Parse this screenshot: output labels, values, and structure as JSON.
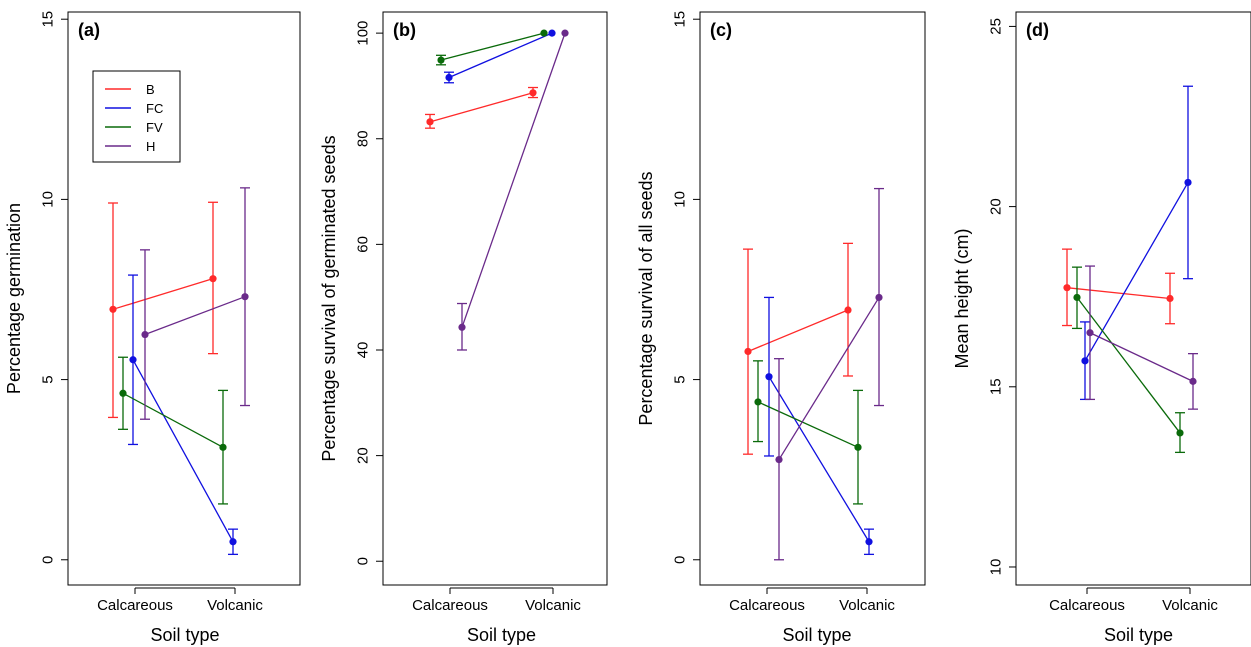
{
  "colors": {
    "B": "#ff2a2a",
    "FC": "#1010e0",
    "FV": "#0a6a0a",
    "H": "#6a2a8a"
  },
  "legend": [
    {
      "name": "B",
      "color_key": "B"
    },
    {
      "name": "FC",
      "color_key": "FC"
    },
    {
      "name": "FV",
      "color_key": "FV"
    },
    {
      "name": "H",
      "color_key": "H"
    }
  ],
  "chart_data": [
    {
      "type": "line",
      "panel": "(a)",
      "xlabel": "Soil type",
      "ylabel": "Percentage germination",
      "categories": [
        "Calcareous",
        "Volcanic"
      ],
      "ylim": [
        -0.7,
        15.2
      ],
      "yticks": [
        0,
        5,
        10,
        15
      ],
      "legend_position": "top-left",
      "series": [
        {
          "name": "B",
          "values": [
            6.95,
            7.8
          ],
          "lower": [
            3.95,
            5.72
          ],
          "upper": [
            9.9,
            9.92
          ]
        },
        {
          "name": "FC",
          "values": [
            5.55,
            0.5
          ],
          "lower": [
            3.2,
            0.15
          ],
          "upper": [
            7.9,
            0.85
          ]
        },
        {
          "name": "FV",
          "values": [
            4.62,
            3.12
          ],
          "lower": [
            3.62,
            1.55
          ],
          "upper": [
            5.62,
            4.7
          ]
        },
        {
          "name": "H",
          "values": [
            6.25,
            7.3
          ],
          "lower": [
            3.9,
            4.28
          ],
          "upper": [
            8.6,
            10.32
          ]
        }
      ]
    },
    {
      "type": "line",
      "panel": "(b)",
      "xlabel": "Soil type",
      "ylabel": "Percentage survival of germinated seeds",
      "categories": [
        "Calcareous",
        "Volcanic"
      ],
      "ylim": [
        -4.5,
        104
      ],
      "yticks": [
        0,
        20,
        40,
        60,
        80,
        100
      ],
      "series": [
        {
          "name": "B",
          "values": [
            83.2,
            88.7
          ],
          "lower": [
            82,
            87.8
          ],
          "upper": [
            84.6,
            89.7
          ]
        },
        {
          "name": "FC",
          "values": [
            91.6,
            100
          ],
          "lower": [
            90.6,
            100
          ],
          "upper": [
            92.6,
            100
          ]
        },
        {
          "name": "FV",
          "values": [
            94.9,
            100
          ],
          "lower": [
            94,
            100
          ],
          "upper": [
            95.8,
            100
          ]
        },
        {
          "name": "H",
          "values": [
            44.3,
            100
          ],
          "lower": [
            40,
            100
          ],
          "upper": [
            48.8,
            100
          ]
        }
      ]
    },
    {
      "type": "line",
      "panel": "(c)",
      "xlabel": "Soil type",
      "ylabel": "Percentage survival of all seeds",
      "categories": [
        "Calcareous",
        "Volcanic"
      ],
      "ylim": [
        -0.7,
        15.2
      ],
      "yticks": [
        0,
        5,
        10,
        15
      ],
      "series": [
        {
          "name": "B",
          "values": [
            5.78,
            6.93
          ],
          "lower": [
            2.93,
            5.1
          ],
          "upper": [
            8.62,
            8.78
          ]
        },
        {
          "name": "FC",
          "values": [
            5.08,
            0.5
          ],
          "lower": [
            2.88,
            0.15
          ],
          "upper": [
            7.28,
            0.85
          ]
        },
        {
          "name": "FV",
          "values": [
            4.38,
            3.12
          ],
          "lower": [
            3.28,
            1.55
          ],
          "upper": [
            5.52,
            4.7
          ]
        },
        {
          "name": "H",
          "values": [
            2.78,
            7.28
          ],
          "lower": [
            0.0,
            4.28
          ],
          "upper": [
            5.58,
            10.3
          ]
        }
      ]
    },
    {
      "type": "line",
      "panel": "(d)",
      "xlabel": "Soil type",
      "ylabel": "Mean height (cm)",
      "categories": [
        "Calcareous",
        "Volcanic"
      ],
      "ylim": [
        9.5,
        25.4
      ],
      "yticks": [
        10,
        15,
        20,
        25
      ],
      "series": [
        {
          "name": "B",
          "values": [
            17.75,
            17.45
          ],
          "lower": [
            16.7,
            16.75
          ],
          "upper": [
            18.82,
            18.15
          ]
        },
        {
          "name": "FC",
          "values": [
            15.72,
            20.67
          ],
          "lower": [
            14.65,
            18.0
          ],
          "upper": [
            16.8,
            23.34
          ]
        },
        {
          "name": "FV",
          "values": [
            17.48,
            13.72
          ],
          "lower": [
            16.62,
            13.18
          ],
          "upper": [
            18.32,
            14.28
          ]
        },
        {
          "name": "H",
          "values": [
            16.5,
            15.15
          ],
          "lower": [
            14.65,
            14.38
          ],
          "upper": [
            18.35,
            15.92
          ]
        }
      ]
    }
  ]
}
